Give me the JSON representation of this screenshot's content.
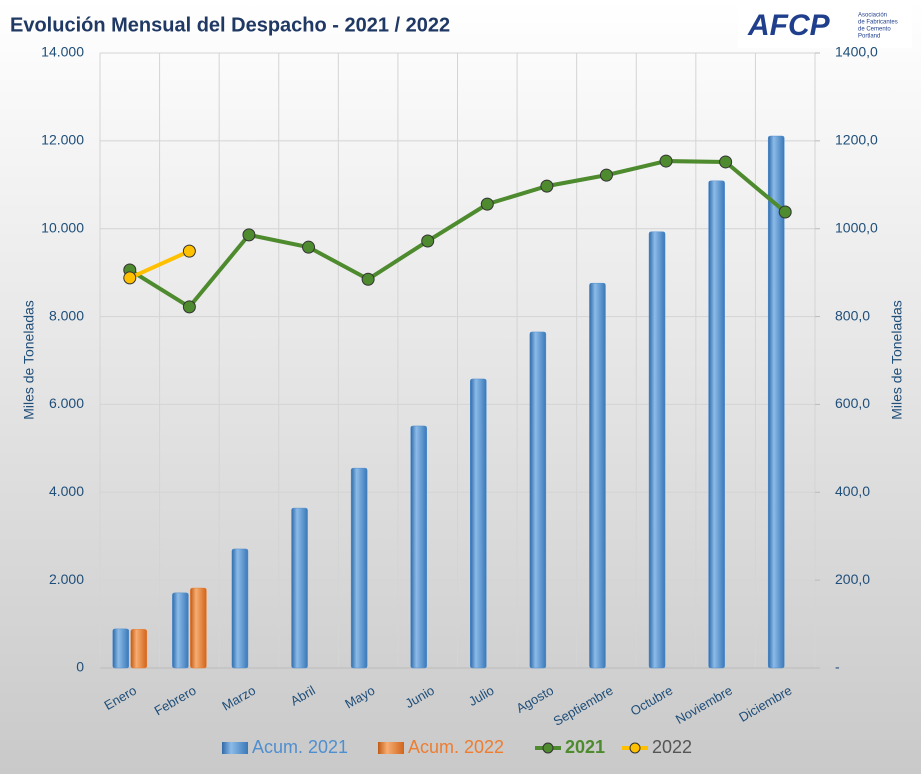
{
  "chart_data": {
    "type": "bar_line",
    "title": "Evolución Mensual del Despacho - 2021 / 2022",
    "logo": {
      "mark": "AFCP",
      "text": [
        "Asociación",
        "de Fabricantes",
        "de Cemento",
        "Portland"
      ]
    },
    "y_label": "Miles de Toneladas",
    "y2_label": "Miles de Toneladas",
    "categories": [
      "Enero",
      "Febrero",
      "Marzo",
      "Abril",
      "Mayo",
      "Junio",
      "Julio",
      "Agosto",
      "Septiembre",
      "Octubre",
      "Noviembre",
      "Diciembre"
    ],
    "series": [
      {
        "name": "Acum. 2021",
        "kind": "bar",
        "color": "#4f8fd0",
        "values": [
          890,
          1710,
          2710,
          3640,
          4550,
          5510,
          6580,
          7650,
          8760,
          9930,
          11090,
          12110
        ]
      },
      {
        "name": "Acum. 2022",
        "kind": "bar",
        "color": "#ed7d31",
        "values": [
          880,
          1820,
          null,
          null,
          null,
          null,
          null,
          null,
          null,
          null,
          null,
          null
        ]
      },
      {
        "name": "2021",
        "kind": "line",
        "axis": "y2",
        "color": "#4e8a2e",
        "values": [
          906,
          822,
          986,
          958,
          885,
          972,
          1056,
          1097,
          1122,
          1154,
          1152,
          1038
        ]
      },
      {
        "name": "2022",
        "kind": "line",
        "axis": "y2",
        "color": "#ffc000",
        "values": [
          888,
          949,
          null,
          null,
          null,
          null,
          null,
          null,
          null,
          null,
          null,
          null
        ]
      }
    ],
    "ylim": [
      0,
      14000
    ],
    "yticks": [
      0,
      {
        "value": 2000,
        "label": "2.000"
      },
      {
        "value": 4000,
        "label": "4.000"
      },
      {
        "value": 6000,
        "label": "6.000"
      },
      {
        "value": 8000,
        "label": "8.000"
      },
      {
        "value": 10000,
        "label": "10.000"
      },
      {
        "value": 12000,
        "label": "12.000"
      },
      {
        "value": 14000,
        "label": "14.000"
      }
    ],
    "y2lim": [
      0,
      1400
    ],
    "y2ticks": [
      {
        "value": 0,
        "label": "-"
      },
      {
        "value": 200,
        "label": "200,0"
      },
      {
        "value": 400,
        "label": "400,0"
      },
      {
        "value": 600,
        "label": "600,0"
      },
      {
        "value": 800,
        "label": "800,0"
      },
      {
        "value": 1000,
        "label": "1000,0"
      },
      {
        "value": 1200,
        "label": "1200,0"
      },
      {
        "value": 1400,
        "label": "1400,0"
      }
    ],
    "grid": true
  }
}
